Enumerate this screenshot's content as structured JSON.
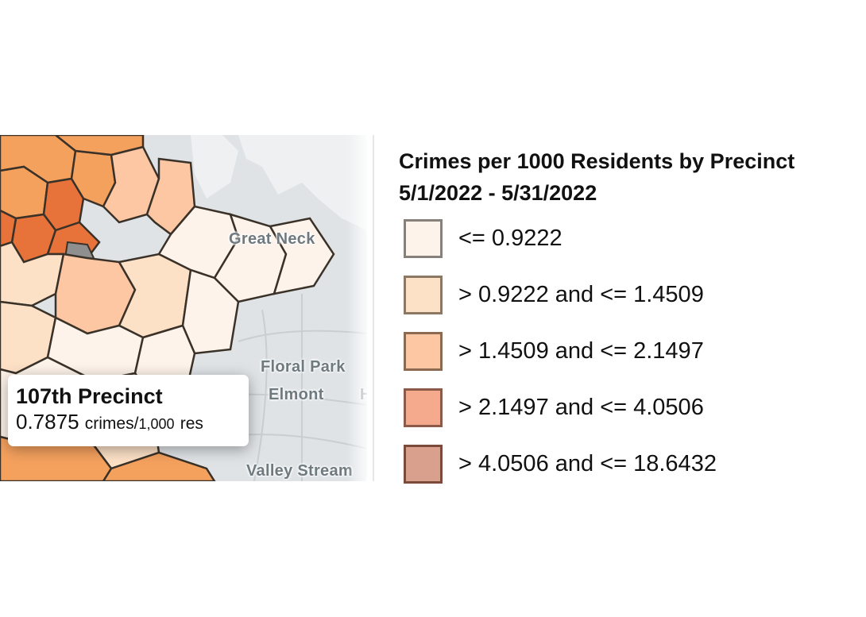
{
  "map": {
    "place_labels": {
      "great_neck": "Great Neck",
      "floral_park": "Floral Park",
      "elmont": "Elmont",
      "valley_stream": "Valley Stream",
      "partial_edge": "H"
    },
    "tooltip": {
      "title": "107th Precinct",
      "value": "0.7875",
      "unit_main": "crimes/",
      "unit_small": "1,000",
      "unit_tail": "res"
    }
  },
  "legend": {
    "title_line1": "Crimes per 1000 Residents by Precinct",
    "title_line2": "5/1/2022 - 5/31/2022",
    "items": [
      {
        "label": "<= 0.9222",
        "fill": "#fdf3ea",
        "border": "#86807b"
      },
      {
        "label": "> 0.9222 and <= 1.4509",
        "fill": "#fde1c7",
        "border": "#8a7865"
      },
      {
        "label": "> 1.4509 and <= 2.1497",
        "fill": "#fcc7a2",
        "border": "#8c6a52"
      },
      {
        "label": "> 2.1497 and <= 4.0506",
        "fill": "#f5a98d",
        "border": "#8c5a48"
      },
      {
        "label": "> 4.0506 and <= 18.6432",
        "fill": "#d9a08e",
        "border": "#7a4a3a"
      }
    ]
  },
  "colors": {
    "water": "#dfe3e6",
    "class1": "#fdf3ea",
    "class2": "#fde1c7",
    "class3": "#fcc7a2",
    "class4_map": "#f5a15e",
    "class5_map": "#e8733a",
    "boundary": "#3a3128"
  }
}
